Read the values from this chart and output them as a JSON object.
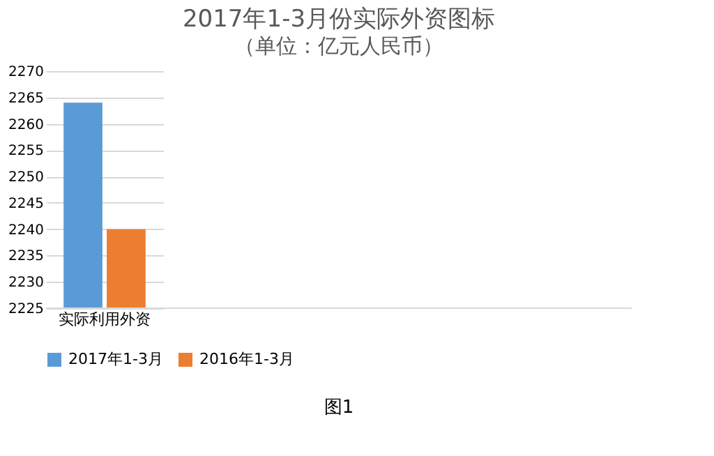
{
  "chart_data": {
    "type": "bar",
    "title": "2017年1-3月份实际外资图标",
    "subtitle": "（单位：亿元人民币）",
    "categories": [
      "实际利用外资"
    ],
    "series": [
      {
        "name": "2017年1-3月",
        "color": "#5b9bd5",
        "values": [
          2264
        ]
      },
      {
        "name": "2016年1-3月",
        "color": "#ed7d31",
        "values": [
          2240
        ]
      }
    ],
    "ylim": [
      2225,
      2270
    ],
    "yticks": [
      2225,
      2230,
      2235,
      2240,
      2245,
      2250,
      2255,
      2260,
      2265,
      2270
    ],
    "grid": "y",
    "legend": "bottom",
    "annotations": [
      "图1"
    ]
  }
}
